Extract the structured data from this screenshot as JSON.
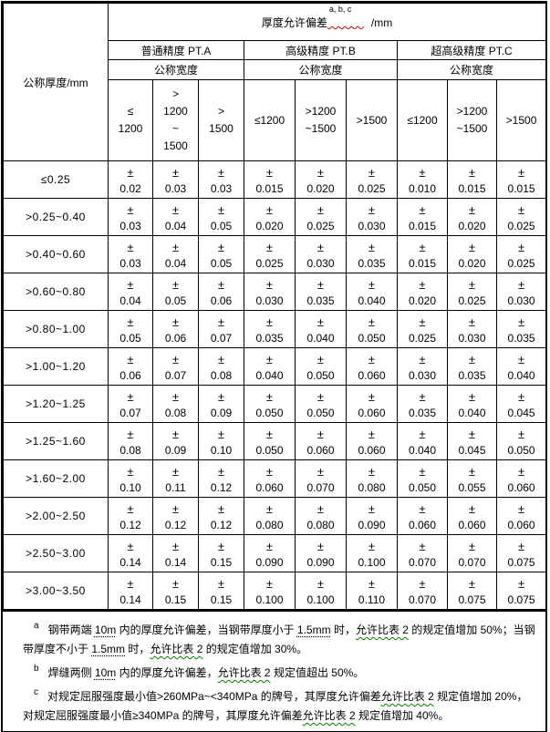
{
  "header": {
    "thickness_label": "公称厚度/mm",
    "title_prefix": "厚度允许偏差",
    "title_sup": "a, b, c",
    "title_suffix": "/mm",
    "grades": [
      "普通精度 PT.A",
      "高级精度 PT.B",
      "超高级精度 PT.C"
    ],
    "width_label": "公称宽度",
    "width_cols": [
      "≤\n1200",
      ">\n1200\n~\n1500",
      ">\n1500",
      "≤1200",
      ">1200\n~1500",
      ">1500",
      "≤1200",
      ">1200\n~1500",
      ">1500"
    ]
  },
  "pm": "±",
  "rows": [
    {
      "label": "≤0.25",
      "values": [
        "0.02",
        "0.03",
        "0.03",
        "0.015",
        "0.020",
        "0.025",
        "0.010",
        "0.015",
        "0.015"
      ]
    },
    {
      "label": ">0.25~0.40",
      "values": [
        "0.03",
        "0.04",
        "0.05",
        "0.020",
        "0.025",
        "0.030",
        "0.015",
        "0.020",
        "0.025"
      ]
    },
    {
      "label": ">0.40~0.60",
      "values": [
        "0.03",
        "0.04",
        "0.05",
        "0.025",
        "0.030",
        "0.035",
        "0.015",
        "0.020",
        "0.025"
      ]
    },
    {
      "label": ">0.60~0.80",
      "values": [
        "0.04",
        "0.05",
        "0.06",
        "0.030",
        "0.035",
        "0.040",
        "0.020",
        "0.025",
        "0.030"
      ]
    },
    {
      "label": ">0.80~1.00",
      "values": [
        "0.05",
        "0.06",
        "0.07",
        "0.035",
        "0.040",
        "0.050",
        "0.025",
        "0.030",
        "0.035"
      ]
    },
    {
      "label": ">1.00~1.20",
      "values": [
        "0.06",
        "0.07",
        "0.08",
        "0.040",
        "0.050",
        "0.060",
        "0.030",
        "0.035",
        "0.040"
      ]
    },
    {
      "label": ">1.20~1.25",
      "values": [
        "0.07",
        "0.08",
        "0.09",
        "0.050",
        "0.050",
        "0.060",
        "0.035",
        "0.040",
        "0.045"
      ]
    },
    {
      "label": ">1.25~1.60",
      "values": [
        "0.08",
        "0.09",
        "0.10",
        "0.050",
        "0.060",
        "0.060",
        "0.040",
        "0.045",
        "0.050"
      ]
    },
    {
      "label": ">1.60~2.00",
      "values": [
        "0.10",
        "0.11",
        "0.12",
        "0.060",
        "0.070",
        "0.080",
        "0.050",
        "0.055",
        "0.060"
      ]
    },
    {
      "label": ">2.00~2.50",
      "values": [
        "0.12",
        "0.12",
        "0.12",
        "0.080",
        "0.080",
        "0.090",
        "0.060",
        "0.060",
        "0.060"
      ]
    },
    {
      "label": ">2.50~3.00",
      "values": [
        "0.14",
        "0.14",
        "0.15",
        "0.090",
        "0.090",
        "0.100",
        "0.070",
        "0.070",
        "0.075"
      ]
    },
    {
      "label": ">3.00~3.50",
      "values": [
        "0.14",
        "0.15",
        "0.15",
        "0.100",
        "0.100",
        "0.110",
        "0.070",
        "0.075",
        "0.075"
      ]
    }
  ],
  "notes": [
    {
      "marker": "a",
      "segments": [
        {
          "text": "钢带两端 "
        },
        {
          "text": "10m",
          "style": "dotted"
        },
        {
          "text": " 内的厚度允许偏差，当钢带厚度小于 "
        },
        {
          "text": "1.5mm",
          "style": "dotted"
        },
        {
          "text": " 时，"
        },
        {
          "text": "允许比表 2",
          "style": "wavy"
        },
        {
          "text": " 的规定值增加 50%；当钢带厚度不小于 "
        },
        {
          "text": "1.5mm",
          "style": "dotted"
        },
        {
          "text": " 时，"
        },
        {
          "text": "允许比表 2",
          "style": "wavy"
        },
        {
          "text": " 的规定值增加 30%。"
        }
      ]
    },
    {
      "marker": "b",
      "segments": [
        {
          "text": "焊缝两侧 "
        },
        {
          "text": "10m",
          "style": "dotted"
        },
        {
          "text": " 内的厚度允许偏差，"
        },
        {
          "text": "允许比表 2",
          "style": "wavy"
        },
        {
          "text": " 规定值超出 50%。"
        }
      ]
    },
    {
      "marker": "c",
      "segments": [
        {
          "text": "对规定屈服强度最小值>260MPa~<340MPa 的牌号，其厚度允许偏差"
        },
        {
          "text": "允许比表 2",
          "style": "wavy"
        },
        {
          "text": " 规定值增加 20%，对规定屈服强度最小值≥340MPa 的牌号，其厚度允许偏差"
        },
        {
          "text": "允许比表 2",
          "style": "wavy"
        },
        {
          "text": " 规定值增加 40%。"
        }
      ]
    }
  ],
  "colors": {
    "border": "#000000",
    "squiggle_red": "#cc0000",
    "squiggle_green": "#008000",
    "background": "#ffffff"
  }
}
